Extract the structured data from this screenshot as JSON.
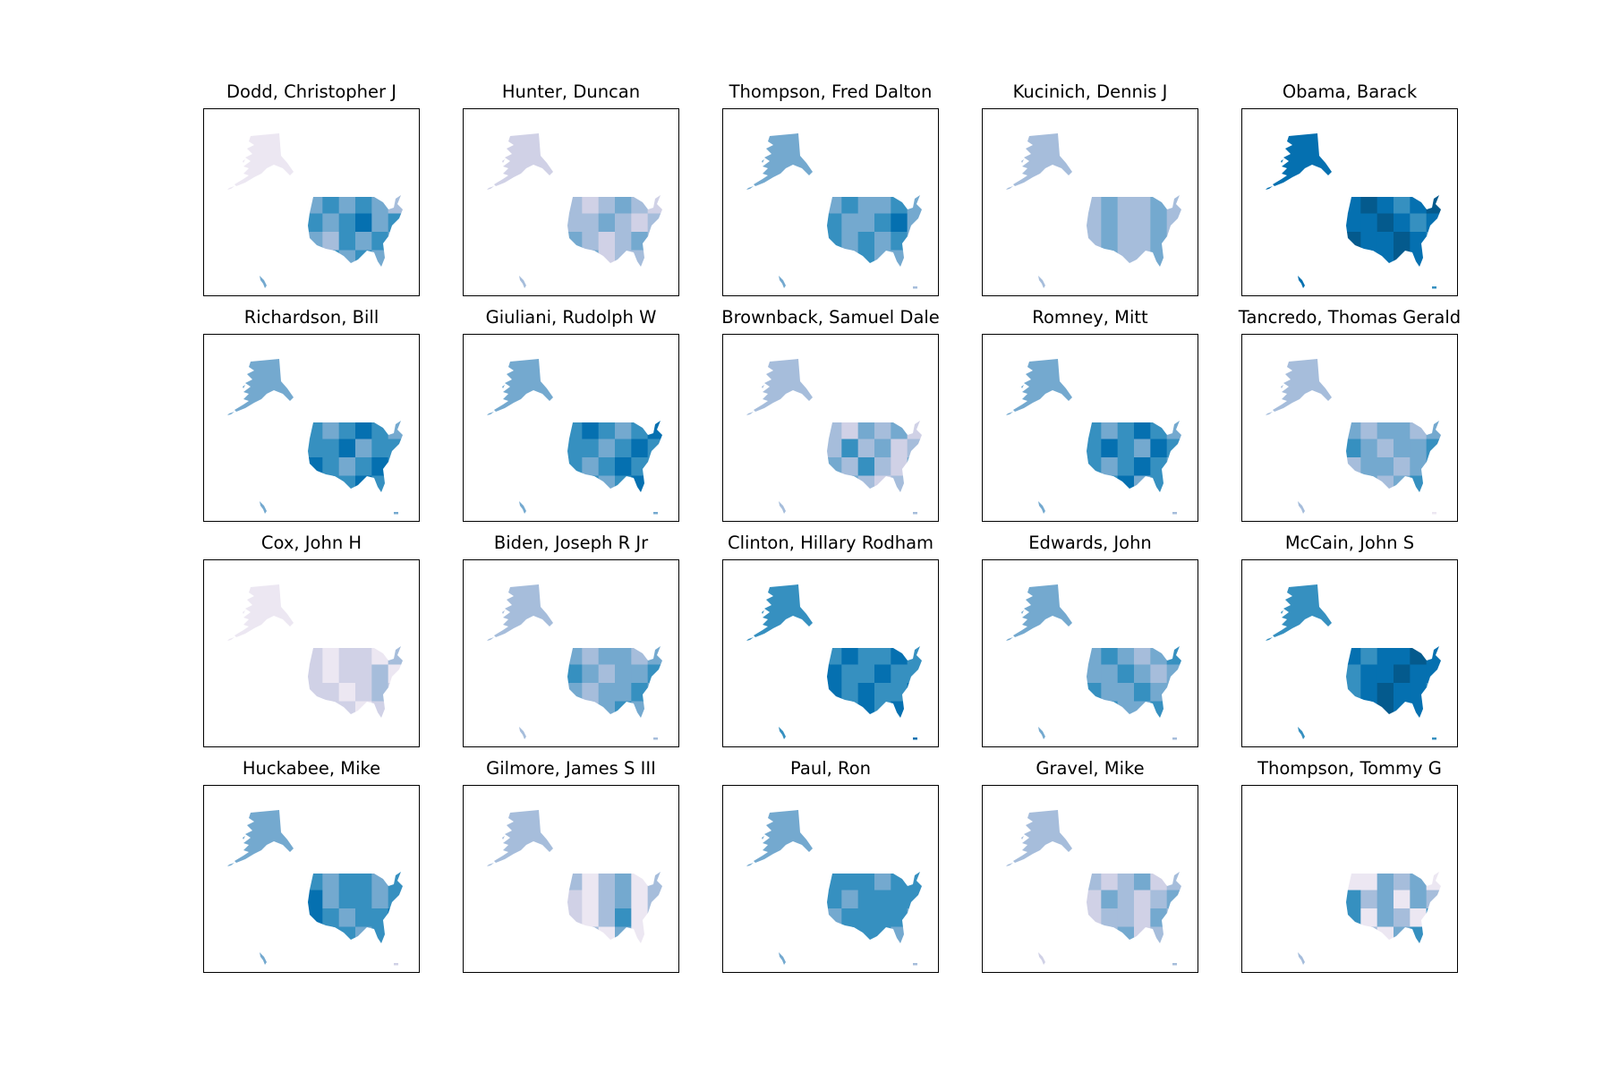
{
  "figure": {
    "type": "choropleth-grid",
    "rows": 4,
    "cols": 5,
    "colormap": [
      "#ece7f2",
      "#d0d1e6",
      "#a6bddb",
      "#74a9cf",
      "#3690c0",
      "#0570b0",
      "#045a8d"
    ],
    "panels": [
      {
        "title": "Dodd, Christopher J",
        "alaska_level": 0,
        "hawaii_level": 3,
        "pr_level": -1,
        "base_level": 3,
        "mainland_variation": [
          0,
          1,
          0,
          1,
          0,
          -1,
          1,
          0,
          1,
          2,
          0,
          1,
          0,
          -1,
          1,
          0,
          1,
          0,
          2,
          1,
          0,
          1,
          0,
          0
        ]
      },
      {
        "title": "Hunter, Duncan",
        "alaska_level": 1,
        "hawaii_level": 2,
        "pr_level": -1,
        "base_level": 2,
        "mainland_variation": [
          0,
          -1,
          0,
          1,
          0,
          -1,
          0,
          0,
          1,
          0,
          -1,
          0,
          1,
          0,
          -1,
          0,
          1,
          0,
          0,
          1,
          -1,
          0,
          0,
          1
        ]
      },
      {
        "title": "Thompson, Fred Dalton",
        "alaska_level": 3,
        "hawaii_level": 3,
        "pr_level": 2,
        "base_level": 3,
        "mainland_variation": [
          0,
          1,
          0,
          0,
          1,
          0,
          1,
          0,
          0,
          1,
          2,
          0,
          1,
          0,
          1,
          0,
          1,
          0,
          2,
          0,
          1,
          0,
          0,
          1
        ]
      },
      {
        "title": "Kucinich, Dennis J",
        "alaska_level": 2,
        "hawaii_level": 2,
        "pr_level": -1,
        "base_level": 2,
        "mainland_variation": [
          0,
          1,
          0,
          0,
          1,
          0,
          0,
          1,
          0,
          0,
          1,
          0,
          0,
          1,
          0,
          0,
          1,
          0,
          0,
          1,
          0,
          0,
          1,
          0
        ]
      },
      {
        "title": "Obama, Barack",
        "alaska_level": 5,
        "hawaii_level": 5,
        "pr_level": 4,
        "base_level": 5,
        "mainland_variation": [
          0,
          1,
          0,
          -1,
          0,
          1,
          0,
          0,
          1,
          0,
          -1,
          0,
          1,
          0,
          0,
          1,
          0,
          -1,
          1,
          0,
          0,
          1,
          0,
          0
        ]
      },
      {
        "title": "Richardson, Bill",
        "alaska_level": 3,
        "hawaii_level": 3,
        "pr_level": 3,
        "base_level": 4,
        "mainland_variation": [
          0,
          -1,
          0,
          1,
          0,
          -1,
          0,
          0,
          1,
          -1,
          0,
          0,
          1,
          0,
          -1,
          0,
          1,
          0,
          -1,
          0,
          0,
          1,
          0,
          -1
        ]
      },
      {
        "title": "Giuliani, Rudolph W",
        "alaska_level": 3,
        "hawaii_level": 3,
        "pr_level": 3,
        "base_level": 4,
        "mainland_variation": [
          0,
          1,
          0,
          -1,
          0,
          1,
          0,
          0,
          -1,
          0,
          1,
          0,
          0,
          -1,
          0,
          1,
          0,
          0,
          1,
          0,
          -1,
          0,
          1,
          0
        ]
      },
      {
        "title": "Brownback, Samuel Dale",
        "alaska_level": 2,
        "hawaii_level": 2,
        "pr_level": 2,
        "base_level": 2,
        "mainland_variation": [
          0,
          -1,
          1,
          0,
          1,
          -1,
          0,
          2,
          0,
          1,
          -1,
          0,
          1,
          0,
          2,
          0,
          -1,
          1,
          0,
          1,
          0,
          -1,
          0,
          1
        ]
      },
      {
        "title": "Romney, Mitt",
        "alaska_level": 3,
        "hawaii_level": 3,
        "pr_level": 2,
        "base_level": 4,
        "mainland_variation": [
          0,
          -1,
          0,
          1,
          0,
          -1,
          0,
          1,
          0,
          -1,
          1,
          0,
          0,
          -1,
          0,
          1,
          0,
          -1,
          0,
          0,
          1,
          -1,
          0,
          0
        ]
      },
      {
        "title": "Tancredo, Thomas Gerald",
        "alaska_level": 2,
        "hawaii_level": 2,
        "pr_level": 0,
        "base_level": 3,
        "mainland_variation": [
          0,
          -1,
          0,
          0,
          -1,
          0,
          1,
          0,
          -1,
          0,
          0,
          1,
          -1,
          0,
          0,
          -1,
          0,
          1,
          0,
          0,
          -1,
          0,
          1,
          0
        ]
      },
      {
        "title": "Cox, John H",
        "alaska_level": 0,
        "hawaii_level": -1,
        "pr_level": -1,
        "base_level": 1,
        "mainland_variation": [
          0,
          -1,
          0,
          0,
          -1,
          1,
          0,
          -1,
          0,
          0,
          1,
          -1,
          0,
          0,
          -1,
          0,
          1,
          0,
          -1,
          0,
          0,
          -1,
          0,
          1
        ]
      },
      {
        "title": "Biden, Joseph R Jr",
        "alaska_level": 2,
        "hawaii_level": 2,
        "pr_level": 2,
        "base_level": 3,
        "mainland_variation": [
          0,
          -1,
          0,
          0,
          -1,
          0,
          1,
          0,
          -1,
          0,
          0,
          1,
          0,
          -1,
          0,
          0,
          1,
          0,
          0,
          -1,
          0,
          1,
          0,
          0
        ]
      },
      {
        "title": "Clinton, Hillary Rodham",
        "alaska_level": 4,
        "hawaii_level": 4,
        "pr_level": 5,
        "base_level": 4,
        "mainland_variation": [
          0,
          1,
          0,
          0,
          1,
          0,
          1,
          0,
          0,
          1,
          0,
          0,
          1,
          0,
          1,
          0,
          0,
          1,
          0,
          0,
          1,
          0,
          1,
          0
        ]
      },
      {
        "title": "Edwards, John",
        "alaska_level": 3,
        "hawaii_level": 3,
        "pr_level": 2,
        "base_level": 3,
        "mainland_variation": [
          0,
          1,
          0,
          -1,
          0,
          1,
          0,
          0,
          1,
          0,
          -1,
          0,
          1,
          0,
          0,
          1,
          0,
          0,
          -1,
          1,
          0,
          0,
          1,
          0
        ]
      },
      {
        "title": "McCain, John S",
        "alaska_level": 4,
        "hawaii_level": 4,
        "pr_level": 4,
        "base_level": 5,
        "mainland_variation": [
          0,
          -1,
          0,
          0,
          1,
          0,
          -1,
          0,
          0,
          1,
          0,
          0,
          -1,
          0,
          1,
          0,
          0,
          -1,
          0,
          0,
          1,
          0,
          0,
          -1
        ]
      },
      {
        "title": "Huckabee, Mike",
        "alaska_level": 3,
        "hawaii_level": 3,
        "pr_level": 1,
        "base_level": 4,
        "mainland_variation": [
          0,
          -1,
          0,
          0,
          -1,
          0,
          1,
          -1,
          0,
          0,
          -1,
          0,
          1,
          0,
          -1,
          0,
          0,
          1,
          -1,
          0,
          0,
          -1,
          0,
          1
        ]
      },
      {
        "title": "Gilmore, James S III",
        "alaska_level": 2,
        "hawaii_level": -1,
        "pr_level": -1,
        "base_level": 2,
        "mainland_variation": [
          0,
          -2,
          0,
          1,
          -2,
          0,
          -1,
          -2,
          0,
          1,
          -2,
          0,
          -1,
          -2,
          0,
          2,
          -2,
          0,
          -1,
          0,
          -2,
          1,
          -2,
          0
        ]
      },
      {
        "title": "Paul, Ron",
        "alaska_level": 3,
        "hawaii_level": 3,
        "pr_level": 2,
        "base_level": 4,
        "mainland_variation": [
          0,
          0,
          0,
          -1,
          0,
          0,
          0,
          -1,
          0,
          0,
          0,
          0,
          -1,
          0,
          0,
          0,
          0,
          -1,
          0,
          0,
          0,
          0,
          -1,
          0
        ]
      },
      {
        "title": "Gravel, Mike",
        "alaska_level": 2,
        "hawaii_level": 1,
        "pr_level": 2,
        "base_level": 2,
        "mainland_variation": [
          0,
          -1,
          0,
          1,
          -1,
          0,
          -1,
          1,
          0,
          -1,
          0,
          1,
          -1,
          0,
          0,
          -1,
          1,
          0,
          -1,
          0,
          1,
          -1,
          0,
          0
        ]
      },
      {
        "title": "Thompson, Tommy G",
        "alaska_level": -1,
        "hawaii_level": 2,
        "pr_level": -1,
        "base_level": 3,
        "mainland_variation": [
          -3,
          -3,
          0,
          -1,
          0,
          -3,
          1,
          -1,
          0,
          -3,
          0,
          -1,
          1,
          -3,
          0,
          -1,
          -3,
          1,
          0,
          -1,
          -3,
          0,
          1,
          -1
        ]
      }
    ]
  }
}
